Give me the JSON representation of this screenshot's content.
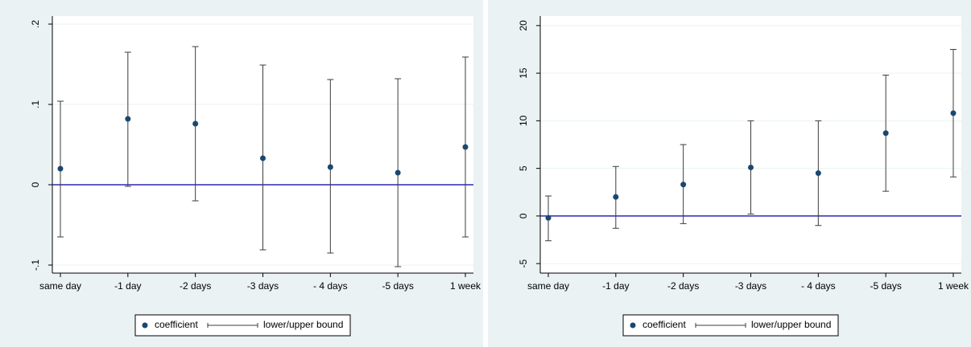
{
  "chart_data": [
    {
      "type": "errorbar",
      "categories": [
        "same day",
        "-1 day",
        "-2 days",
        "-3 days",
        "- 4 days",
        "-5 days",
        "1 week"
      ],
      "series": [
        {
          "name": "coefficient",
          "color": "#1a476f",
          "values": [
            0.02,
            0.082,
            0.076,
            0.033,
            0.022,
            0.015,
            0.047
          ]
        },
        {
          "name": "lower/upper bound",
          "color": "#3c3c3c",
          "lower": [
            -0.065,
            -0.002,
            -0.02,
            -0.081,
            -0.085,
            -0.102,
            -0.065
          ],
          "upper": [
            0.104,
            0.165,
            0.172,
            0.149,
            0.131,
            0.132,
            0.159
          ]
        }
      ],
      "ylim": [
        -0.11,
        0.21
      ],
      "yticks": [
        {
          "value": -0.1,
          "label": "-.1"
        },
        {
          "value": 0,
          "label": "0"
        },
        {
          "value": 0.1,
          "label": ".1"
        },
        {
          "value": 0.2,
          "label": ".2"
        }
      ],
      "grid": true,
      "reference_line": 0,
      "reference_color": "#2a2ab4",
      "legend": "bottom"
    },
    {
      "type": "errorbar",
      "categories": [
        "same day",
        "-1 day",
        "-2 days",
        "-3 days",
        "- 4 days",
        "-5 days",
        "1 week"
      ],
      "series": [
        {
          "name": "coefficient",
          "color": "#1a476f",
          "values": [
            -0.2,
            2.0,
            3.3,
            5.1,
            4.5,
            8.7,
            10.8
          ]
        },
        {
          "name": "lower/upper bound",
          "color": "#3c3c3c",
          "lower": [
            -2.6,
            -1.3,
            -0.8,
            0.2,
            -1.0,
            2.6,
            4.1
          ],
          "upper": [
            2.1,
            5.2,
            7.5,
            10.0,
            10.0,
            14.8,
            17.5
          ]
        }
      ],
      "ylim": [
        -6,
        21
      ],
      "yticks": [
        -5,
        0,
        5,
        10,
        15,
        20
      ],
      "grid": true,
      "reference_line": 0,
      "reference_color": "#2a2ab4",
      "legend": "bottom"
    }
  ]
}
